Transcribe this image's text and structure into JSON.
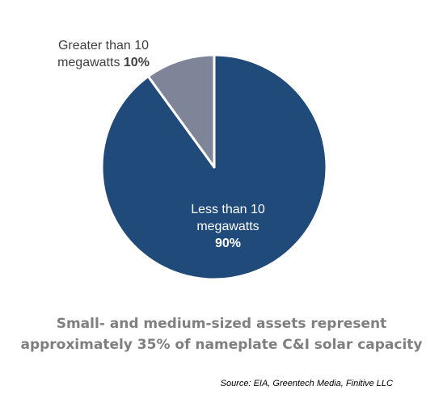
{
  "chart_data": {
    "type": "pie",
    "slices": [
      {
        "name": "Less than 10 megawatts",
        "label_lines": [
          "Less than 10",
          "megawatts"
        ],
        "value": 90,
        "value_label": "90%",
        "color": "#1f4a7a",
        "label_color": "#ffffff"
      },
      {
        "name": "Greater than 10 megawatts",
        "label_lines": [
          "Greater than 10",
          "megawatts"
        ],
        "value": 10,
        "value_label": "10%",
        "color": "#7f8598",
        "label_color": "#404040"
      }
    ],
    "start": "12 o'clock",
    "direction": "clockwise",
    "legend": "none",
    "caption_lines": [
      "Small- and medium-sized assets represent",
      "approximately 35% of nameplate C&I solar capacity"
    ],
    "source": "Source: EIA, Greentech Media, Finitive LLC",
    "separator_color": "#ffffff",
    "caption_color": "#7f7f7f"
  }
}
